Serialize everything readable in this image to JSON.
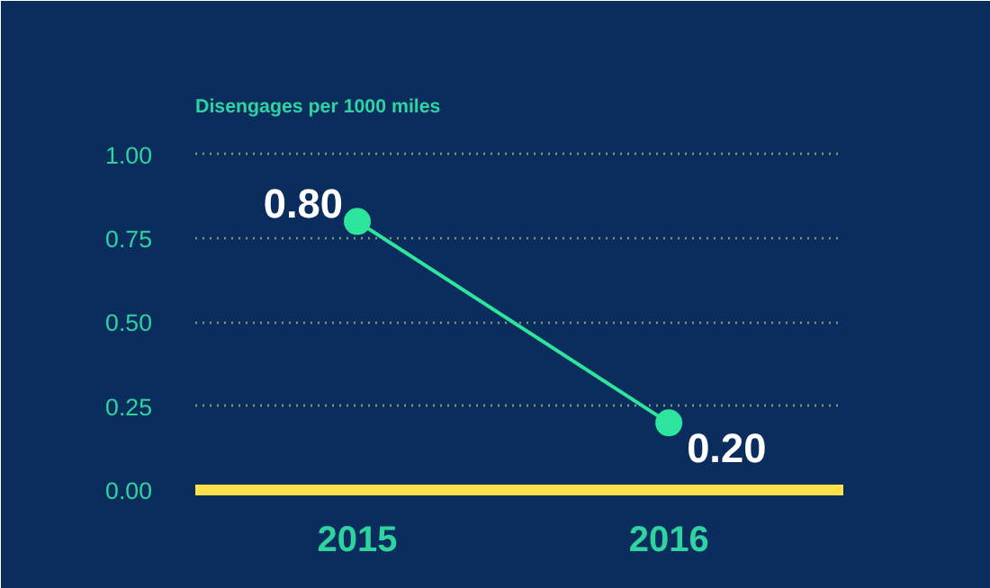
{
  "chart_data": {
    "type": "line",
    "ylabel": "Disengages per 1000 miles",
    "categories": [
      "2015",
      "2016"
    ],
    "series": [
      {
        "color": "#2ee59d",
        "values": [
          0.8,
          0.2
        ]
      }
    ],
    "ylim": [
      0,
      1.05
    ],
    "yticks": [
      {
        "value": 0,
        "label": "0.00"
      },
      {
        "value": 0.25,
        "label": "0.25"
      },
      {
        "value": 0.5,
        "label": "0.50"
      },
      {
        "value": 0.75,
        "label": "0.75"
      },
      {
        "value": 1,
        "label": "1.00"
      }
    ],
    "value_labels": [
      "0.80",
      "0.20"
    ],
    "grid": "y",
    "marker": "circle"
  }
}
